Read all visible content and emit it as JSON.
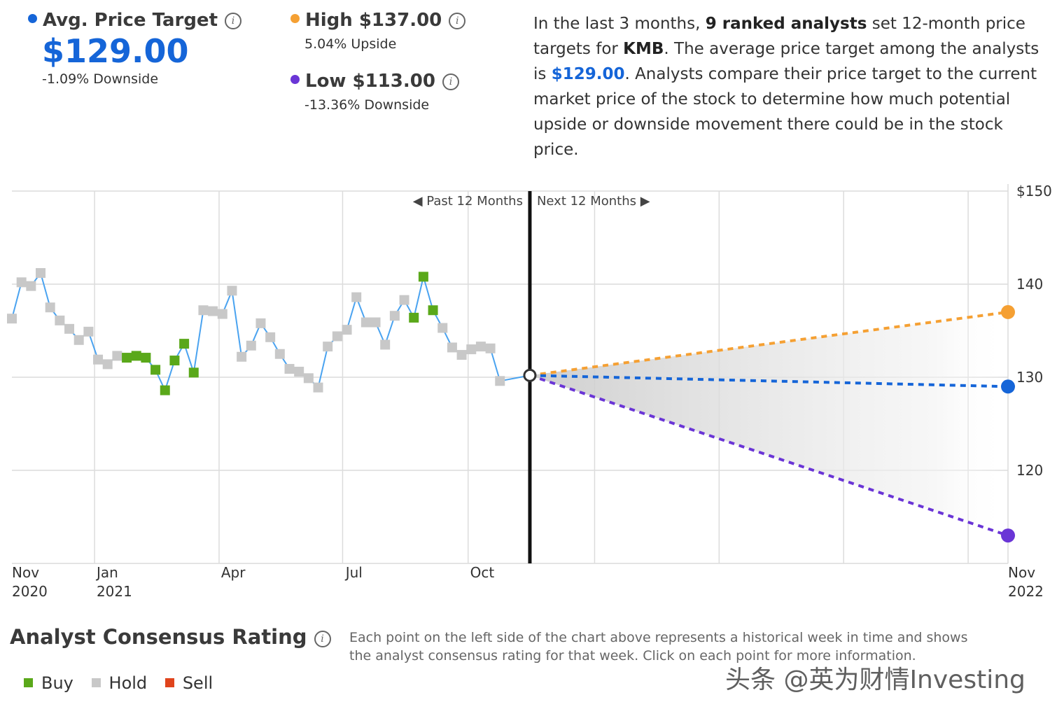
{
  "stats": {
    "avg": {
      "title": "Avg. Price Target",
      "value": "$129.00",
      "sub": "-1.09% Downside",
      "color": "#1565d8"
    },
    "high": {
      "title": "High $137.00",
      "sub": "5.04% Upside",
      "color": "#f5a033"
    },
    "low": {
      "title": "Low $113.00",
      "sub": "-13.36% Downside",
      "color": "#6a35d6"
    }
  },
  "description": {
    "p1": "In the last 3 months, ",
    "analysts": "9 ranked analysts",
    "p2": " set 12-month price targets for ",
    "ticker": "KMB",
    "p3": ". The average price target among the analysts is ",
    "avg": "$129.00",
    "p4": ". Analysts compare their price target to the current market price of the stock to determine how much potential upside or downside movement there could be in the stock price."
  },
  "chart_data": {
    "type": "line",
    "title": "",
    "past_label": "Past 12 Months",
    "next_label": "Next 12 Months",
    "ylim": [
      110,
      150
    ],
    "y_ticks": [
      {
        "v": 150,
        "label": "$150"
      },
      {
        "v": 140,
        "label": "140"
      },
      {
        "v": 130,
        "label": "130"
      },
      {
        "v": 120,
        "label": "120"
      }
    ],
    "x_labels": [
      {
        "t": 0,
        "line1": "Nov",
        "line2": "2020"
      },
      {
        "t": 8.5,
        "line1": "Jan",
        "line2": "2021"
      },
      {
        "t": 21,
        "line1": "Apr",
        "line2": ""
      },
      {
        "t": 33.5,
        "line1": "Jul",
        "line2": ""
      },
      {
        "t": 46,
        "line1": "Oct",
        "line2": ""
      },
      {
        "t": 100,
        "line1": "Nov",
        "line2": "2022"
      }
    ],
    "x_grid": [
      8.3,
      20.8,
      33.2,
      45.8,
      58.5,
      71,
      83.5,
      96
    ],
    "history": [
      [
        0,
        136.3,
        "hold"
      ],
      [
        1,
        140.2,
        "hold"
      ],
      [
        2,
        139.8,
        "hold"
      ],
      [
        3,
        141.2,
        "hold"
      ],
      [
        4,
        137.5,
        "hold"
      ],
      [
        5,
        136.1,
        "hold"
      ],
      [
        6,
        135.2,
        "hold"
      ],
      [
        7,
        134.0,
        "hold"
      ],
      [
        8,
        134.9,
        "hold"
      ],
      [
        9,
        131.9,
        "hold"
      ],
      [
        10,
        131.4,
        "hold"
      ],
      [
        11,
        132.3,
        "hold"
      ],
      [
        12,
        132.1,
        "buy"
      ],
      [
        13,
        132.3,
        "buy"
      ],
      [
        14,
        132.1,
        "buy"
      ],
      [
        15,
        130.8,
        "buy"
      ],
      [
        16,
        128.6,
        "buy"
      ],
      [
        17,
        131.8,
        "buy"
      ],
      [
        18,
        133.6,
        "buy"
      ],
      [
        19,
        130.5,
        "buy"
      ],
      [
        20,
        137.2,
        "hold"
      ],
      [
        21,
        137.1,
        "hold"
      ],
      [
        22,
        136.8,
        "hold"
      ],
      [
        23,
        139.3,
        "hold"
      ],
      [
        24,
        132.2,
        "hold"
      ],
      [
        25,
        133.4,
        "hold"
      ],
      [
        26,
        135.8,
        "hold"
      ],
      [
        27,
        134.3,
        "hold"
      ],
      [
        28,
        132.5,
        "hold"
      ],
      [
        29,
        130.9,
        "hold"
      ],
      [
        30,
        130.6,
        "hold"
      ],
      [
        31,
        129.9,
        "hold"
      ],
      [
        32,
        128.9,
        "hold"
      ],
      [
        33,
        133.3,
        "hold"
      ],
      [
        34,
        134.4,
        "hold"
      ],
      [
        35,
        135.1,
        "hold"
      ],
      [
        36,
        138.6,
        "hold"
      ],
      [
        37,
        135.9,
        "hold"
      ],
      [
        38,
        135.9,
        "hold"
      ],
      [
        39,
        133.5,
        "hold"
      ],
      [
        40,
        136.6,
        "hold"
      ],
      [
        41,
        138.3,
        "hold"
      ],
      [
        42,
        136.4,
        "buy"
      ],
      [
        43,
        140.8,
        "buy"
      ],
      [
        44,
        137.2,
        "buy"
      ],
      [
        45,
        135.3,
        "hold"
      ],
      [
        46,
        133.2,
        "hold"
      ],
      [
        47,
        132.4,
        "hold"
      ],
      [
        48,
        133.0,
        "hold"
      ],
      [
        49,
        133.3,
        "hold"
      ],
      [
        50,
        133.1,
        "hold"
      ],
      [
        51,
        129.6,
        "hold"
      ]
    ],
    "current": {
      "t": 52,
      "v": 130.2
    },
    "targets": {
      "high": {
        "v": 137.0,
        "color": "#f5a033"
      },
      "avg": {
        "v": 129.0,
        "color": "#1565d8"
      },
      "low": {
        "v": 113.0,
        "color": "#6a35d6"
      }
    },
    "colors": {
      "buy": "#5aa81a",
      "hold": "#c8c8c8",
      "sell": "#e0441c",
      "line": "#4aa3f0"
    }
  },
  "consensus": {
    "title": "Analyst Consensus Rating",
    "note": "Each point on the left side of the chart above represents a historical week in time and shows the analyst consensus rating for that week. Click on each point for more information.",
    "legend": {
      "buy": "Buy",
      "hold": "Hold",
      "sell": "Sell"
    }
  },
  "watermark": "头条 @英为财情Investing"
}
